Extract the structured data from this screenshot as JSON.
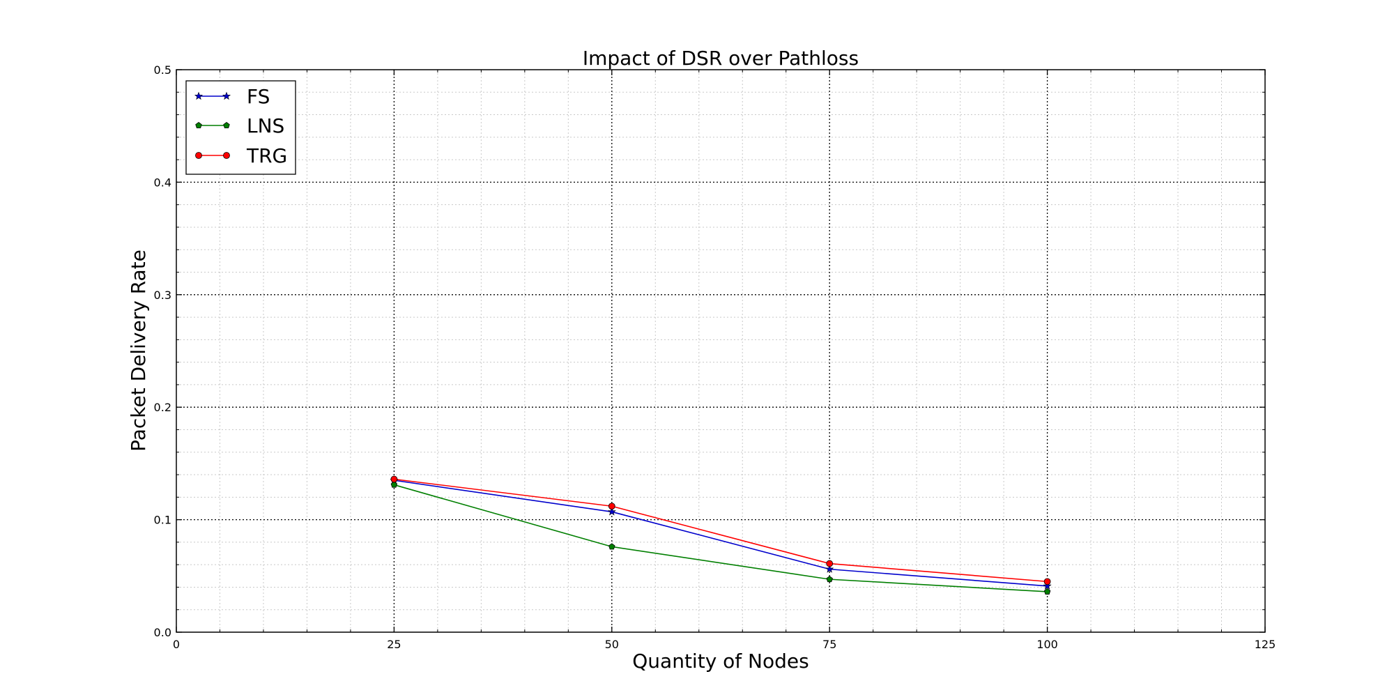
{
  "chart_data": {
    "type": "line",
    "title": "Impact of DSR over Pathloss",
    "xlabel": "Quantity of Nodes",
    "ylabel": "Packet Delivery Rate",
    "xlim": [
      0,
      125
    ],
    "ylim": [
      0,
      0.5
    ],
    "xticks": [
      "0",
      "25",
      "50",
      "75",
      "100",
      "125"
    ],
    "yticks": [
      "0.0",
      "0.1",
      "0.2",
      "0.3",
      "0.4",
      "0.5"
    ],
    "grid": true,
    "legend_position": "top-left",
    "x": [
      25,
      50,
      75,
      100
    ],
    "series": [
      {
        "name": "FS",
        "values": [
          0.135,
          0.107,
          0.056,
          0.041
        ],
        "color": "#0000cc",
        "marker": "star"
      },
      {
        "name": "LNS",
        "values": [
          0.131,
          0.076,
          0.047,
          0.036
        ],
        "color": "#007f00",
        "marker": "pentagon"
      },
      {
        "name": "TRG",
        "values": [
          0.136,
          0.112,
          0.061,
          0.045
        ],
        "color": "#ff0000",
        "marker": "circle"
      }
    ]
  }
}
